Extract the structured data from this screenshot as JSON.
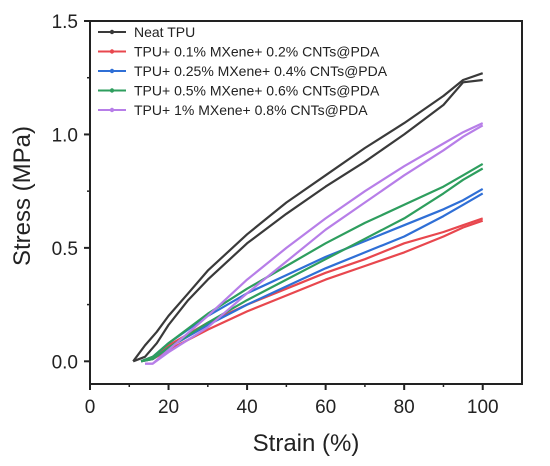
{
  "chart_data": {
    "type": "line",
    "xlabel": "Strain (%)",
    "ylabel": "Stress (MPa)",
    "xlim": [
      0,
      110
    ],
    "ylim": [
      -0.1,
      1.5
    ],
    "xticks": [
      "0",
      "20",
      "40",
      "60",
      "80",
      "100"
    ],
    "yticks": [
      "0.0",
      "0.5",
      "1.0",
      "1.5"
    ],
    "grid": false,
    "legend": "top-left",
    "series": [
      {
        "name": "Neat TPU",
        "color": "#3a3a3a",
        "loading": {
          "x": [
            11,
            14,
            17,
            20,
            25,
            30,
            40,
            50,
            60,
            70,
            80,
            90,
            95,
            100
          ],
          "y": [
            0.0,
            0.07,
            0.13,
            0.2,
            0.3,
            0.4,
            0.56,
            0.7,
            0.82,
            0.94,
            1.05,
            1.17,
            1.24,
            1.27
          ]
        },
        "unloading": {
          "x": [
            100,
            95,
            90,
            80,
            70,
            60,
            50,
            40,
            30,
            25,
            20,
            17,
            14,
            11
          ],
          "y": [
            1.24,
            1.23,
            1.13,
            1.0,
            0.88,
            0.77,
            0.65,
            0.52,
            0.36,
            0.27,
            0.16,
            0.08,
            0.02,
            0.0
          ]
        }
      },
      {
        "name": "TPU+ 0.1% MXene+ 0.2% CNTs@PDA",
        "color": "#e8474e",
        "loading": {
          "x": [
            13,
            16,
            20,
            30,
            40,
            50,
            60,
            70,
            80,
            90,
            95,
            100
          ],
          "y": [
            0.0,
            0.02,
            0.07,
            0.17,
            0.25,
            0.32,
            0.39,
            0.45,
            0.52,
            0.57,
            0.6,
            0.63
          ]
        },
        "unloading": {
          "x": [
            100,
            95,
            90,
            80,
            70,
            60,
            50,
            40,
            30,
            20,
            16,
            13
          ],
          "y": [
            0.62,
            0.59,
            0.55,
            0.48,
            0.42,
            0.36,
            0.29,
            0.22,
            0.14,
            0.05,
            0.01,
            0.0
          ]
        }
      },
      {
        "name": "TPU+ 0.25% MXene+ 0.4% CNTs@PDA",
        "color": "#2f6fd6",
        "loading": {
          "x": [
            13,
            16,
            20,
            30,
            40,
            50,
            60,
            70,
            80,
            90,
            95,
            100
          ],
          "y": [
            0.0,
            0.02,
            0.08,
            0.2,
            0.3,
            0.38,
            0.46,
            0.53,
            0.6,
            0.67,
            0.71,
            0.76
          ]
        },
        "unloading": {
          "x": [
            100,
            95,
            90,
            80,
            70,
            60,
            50,
            40,
            30,
            20,
            16,
            13
          ],
          "y": [
            0.74,
            0.69,
            0.64,
            0.55,
            0.48,
            0.41,
            0.33,
            0.25,
            0.16,
            0.06,
            0.01,
            0.0
          ]
        }
      },
      {
        "name": "TPU+ 0.5% MXene+ 0.6% CNTs@PDA",
        "color": "#2e9e5e",
        "loading": {
          "x": [
            13,
            16,
            20,
            30,
            40,
            50,
            60,
            70,
            80,
            90,
            95,
            100
          ],
          "y": [
            0.0,
            0.02,
            0.08,
            0.21,
            0.32,
            0.42,
            0.52,
            0.61,
            0.69,
            0.77,
            0.82,
            0.87
          ]
        },
        "unloading": {
          "x": [
            100,
            95,
            90,
            80,
            70,
            60,
            50,
            40,
            30,
            20,
            16,
            13
          ],
          "y": [
            0.85,
            0.8,
            0.74,
            0.63,
            0.54,
            0.45,
            0.36,
            0.27,
            0.17,
            0.06,
            0.01,
            0.0
          ]
        }
      },
      {
        "name": "TPU+ 1% MXene+ 0.8% CNTs@PDA",
        "color": "#b77ee8",
        "loading": {
          "x": [
            14,
            16,
            20,
            30,
            40,
            50,
            60,
            70,
            80,
            90,
            95,
            100
          ],
          "y": [
            -0.01,
            -0.01,
            0.05,
            0.2,
            0.36,
            0.5,
            0.63,
            0.75,
            0.86,
            0.96,
            1.01,
            1.05
          ]
        },
        "unloading": {
          "x": [
            100,
            95,
            90,
            80,
            70,
            60,
            50,
            40,
            30,
            20,
            16,
            14
          ],
          "y": [
            1.04,
            0.99,
            0.93,
            0.82,
            0.7,
            0.58,
            0.44,
            0.3,
            0.15,
            0.04,
            -0.01,
            -0.01
          ]
        }
      }
    ]
  }
}
